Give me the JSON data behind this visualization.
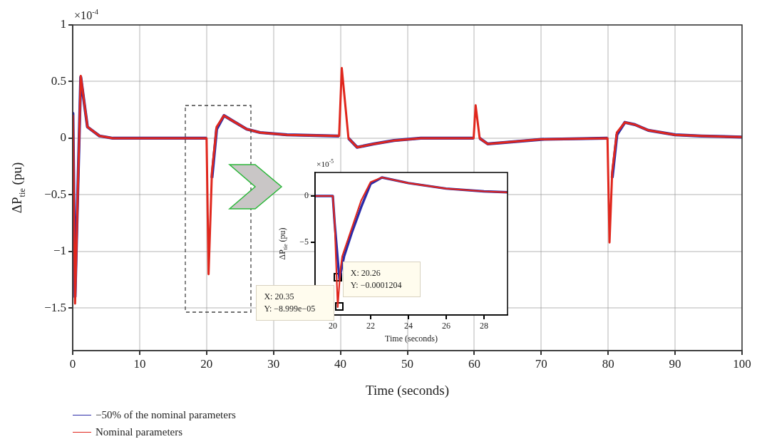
{
  "chart_data": [
    {
      "type": "line",
      "xlabel": "Time (seconds)",
      "ylabel": "ΔP$_{tie}$ (pu)",
      "legend": "bottom left",
      "grid": true,
      "xlim": [
        0,
        100
      ],
      "ylim": [
        -1.875,
        1
      ],
      "xticks": [
        0,
        10,
        20,
        30,
        40,
        50,
        60,
        70,
        80,
        90,
        100
      ],
      "yticks": [
        {
          "value": -1.5,
          "label": "−1.5"
        },
        {
          "value": -1,
          "label": "−1"
        },
        {
          "value": -0.5,
          "label": "−0.5"
        },
        0,
        0.5,
        1
      ],
      "annotations": [
        "×10$^{-4}$"
      ],
      "x": [
        0,
        0.03,
        0.35,
        1.2,
        2.2,
        4,
        6,
        20,
        20.3,
        20.8,
        21.5,
        22.6,
        24,
        26,
        28,
        32,
        39.8,
        40.2,
        41.2,
        42.5,
        45,
        48,
        52,
        59.9,
        60.2,
        60.8,
        62,
        64,
        70,
        79.9,
        80.2,
        80.6,
        81.3,
        82.5,
        84,
        86,
        90,
        94,
        100
      ],
      "series": [
        {
          "name": "−50% of the nominal parameters",
          "color": "#2b2ba8",
          "values": [
            0,
            0.22,
            -1.4,
            0.54,
            0.1,
            0.02,
            0,
            0,
            null,
            -0.35,
            0.08,
            0.2,
            0.15,
            0.08,
            0.05,
            0.03,
            0.02,
            null,
            0,
            -0.08,
            -0.05,
            -0.02,
            0,
            0,
            null,
            0,
            -0.05,
            -0.04,
            -0.01,
            0,
            null,
            -0.35,
            0.03,
            0.14,
            0.12,
            0.07,
            0.03,
            0.02,
            0.01
          ]
        },
        {
          "name": "Nominal parameters",
          "color": "#e0271d",
          "values": [
            0,
            0.2,
            -1.46,
            0.55,
            0.1,
            0.02,
            0,
            0,
            -1.2,
            -0.3,
            0.1,
            0.2,
            0.15,
            0.08,
            0.05,
            0.03,
            0.02,
            0.62,
            0,
            -0.08,
            -0.05,
            -0.02,
            0,
            0,
            0.29,
            0,
            -0.05,
            -0.04,
            -0.01,
            0,
            -0.92,
            -0.3,
            0.05,
            0.14,
            0.12,
            0.07,
            0.03,
            0.02,
            0.01
          ]
        }
      ]
    },
    {
      "type": "line",
      "xlabel": "Time (seconds)",
      "ylabel": "ΔP$_{tie}$ (pu)",
      "xlim": [
        19.06,
        29.25
      ],
      "ylim": [
        -12.85,
        2.54
      ],
      "xticks": [
        20,
        22,
        24,
        26,
        28
      ],
      "yticks": [
        {
          "value": -5,
          "label": "−5"
        },
        0
      ],
      "annotations": [
        "×10$^{-5}$",
        {
          "text": "X: 20.26\nY: −0.0001204",
          "x": 20.26,
          "y": -8.8
        },
        {
          "text": "X: 20.35\nY: −8.999e−05",
          "x": 20.35,
          "y": -11.9
        }
      ],
      "series": [
        {
          "color": "#2b2ba8",
          "x": [
            19.06,
            20,
            20.1,
            20.35,
            20.6,
            21,
            21.5,
            22,
            22.6,
            24,
            26,
            28,
            29.25
          ],
          "values": [
            0,
            0,
            -3,
            -9,
            -6.5,
            -4,
            -1.2,
            1.3,
            2,
            1.4,
            0.8,
            0.5,
            0.4
          ]
        },
        {
          "color": "#e0271d",
          "x": [
            19.06,
            20,
            20.1,
            20.26,
            20.4,
            20.5,
            21,
            21.5,
            22,
            22.6,
            24,
            26,
            28,
            29.25
          ],
          "values": [
            0,
            0,
            -3,
            -12,
            -8,
            -6.5,
            -3.5,
            -0.5,
            1.5,
            2,
            1.4,
            0.8,
            0.5,
            0.4
          ]
        }
      ]
    }
  ]
}
